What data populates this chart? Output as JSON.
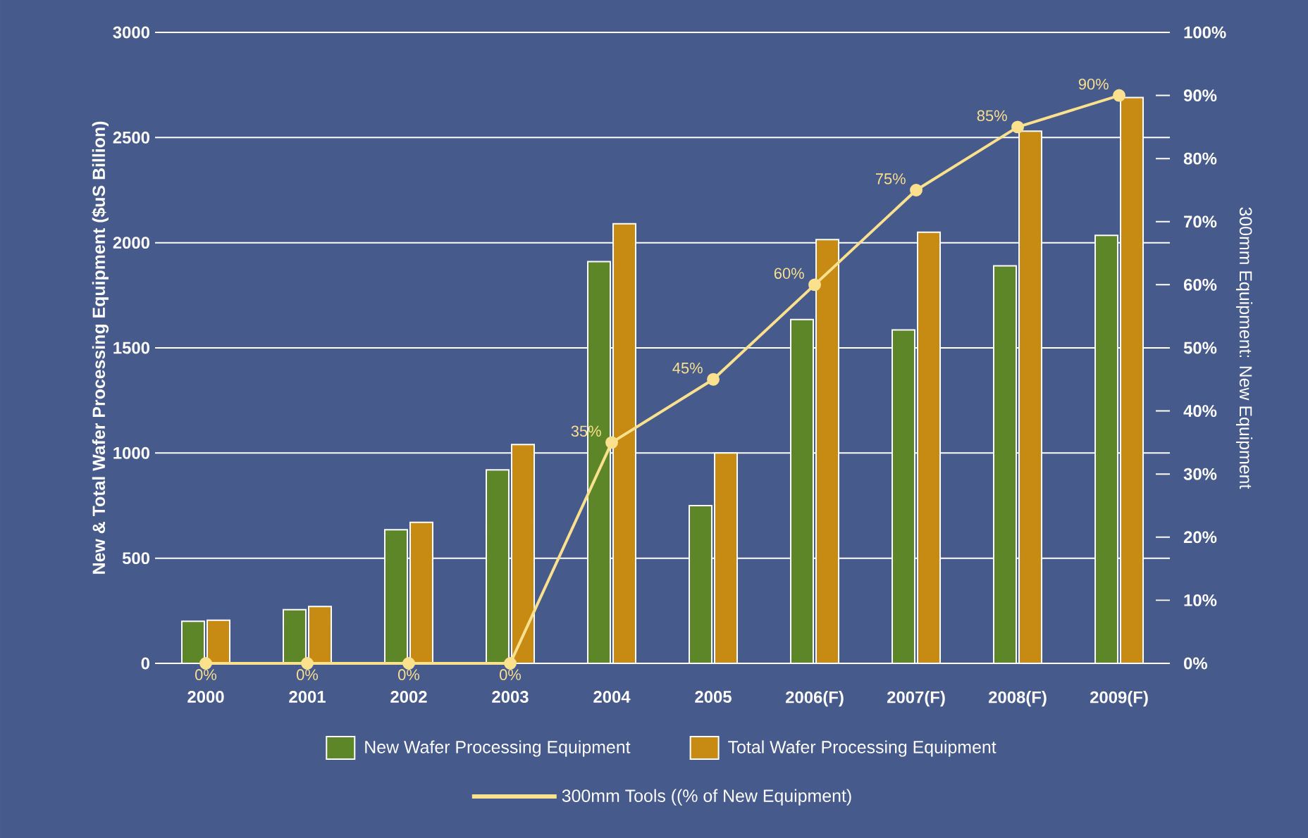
{
  "chart_data": {
    "type": "bar",
    "ylabel": "New & Total Wafer Processing Equipment ($uS Billion)",
    "y2label": "300mm Equipment: New Equipment",
    "categories": [
      "2000",
      "2001",
      "2002",
      "2003",
      "2004",
      "2005",
      "2006(F)",
      "2007(F)",
      "2008(F)",
      "2009(F)"
    ],
    "series": [
      {
        "name": "New Wafer Processing Equipment",
        "color": "#5c8628",
        "values": [
          200,
          255,
          635,
          920,
          1910,
          750,
          1635,
          1585,
          1890,
          2035
        ]
      },
      {
        "name": "Total Wafer Processing Equipment",
        "color": "#c78a12",
        "values": [
          205,
          270,
          670,
          1040,
          2090,
          1000,
          2015,
          2050,
          2530,
          2690
        ]
      },
      {
        "name": "300mm Tools ((% of New Equipment)",
        "type": "line",
        "axis": "y2",
        "color": "#fbe08e",
        "marker": "circle",
        "values": [
          0,
          0,
          0,
          0,
          35,
          45,
          60,
          75,
          85,
          90
        ],
        "value_labels": [
          "0%",
          "0%",
          "0%",
          "0%",
          "35%",
          "45%",
          "60%",
          "75%",
          "85%",
          "90%"
        ]
      }
    ],
    "ylim": [
      0,
      3000
    ],
    "yticks": [
      0,
      500,
      1000,
      1500,
      2000,
      2500,
      3000
    ],
    "y2lim": [
      0,
      100
    ],
    "y2ticks": [
      {
        "value": 0,
        "label": "0%"
      },
      {
        "value": 10,
        "label": "10%"
      },
      {
        "value": 20,
        "label": "20%"
      },
      {
        "value": 30,
        "label": "30%"
      },
      {
        "value": 40,
        "label": "40%"
      },
      {
        "value": 50,
        "label": "50%"
      },
      {
        "value": 60,
        "label": "60%"
      },
      {
        "value": 70,
        "label": "70%"
      },
      {
        "value": 80,
        "label": "80%"
      },
      {
        "value": 90,
        "label": "90%"
      },
      {
        "value": 100,
        "label": "100%"
      }
    ],
    "grid": "y",
    "legend": "bottom"
  }
}
